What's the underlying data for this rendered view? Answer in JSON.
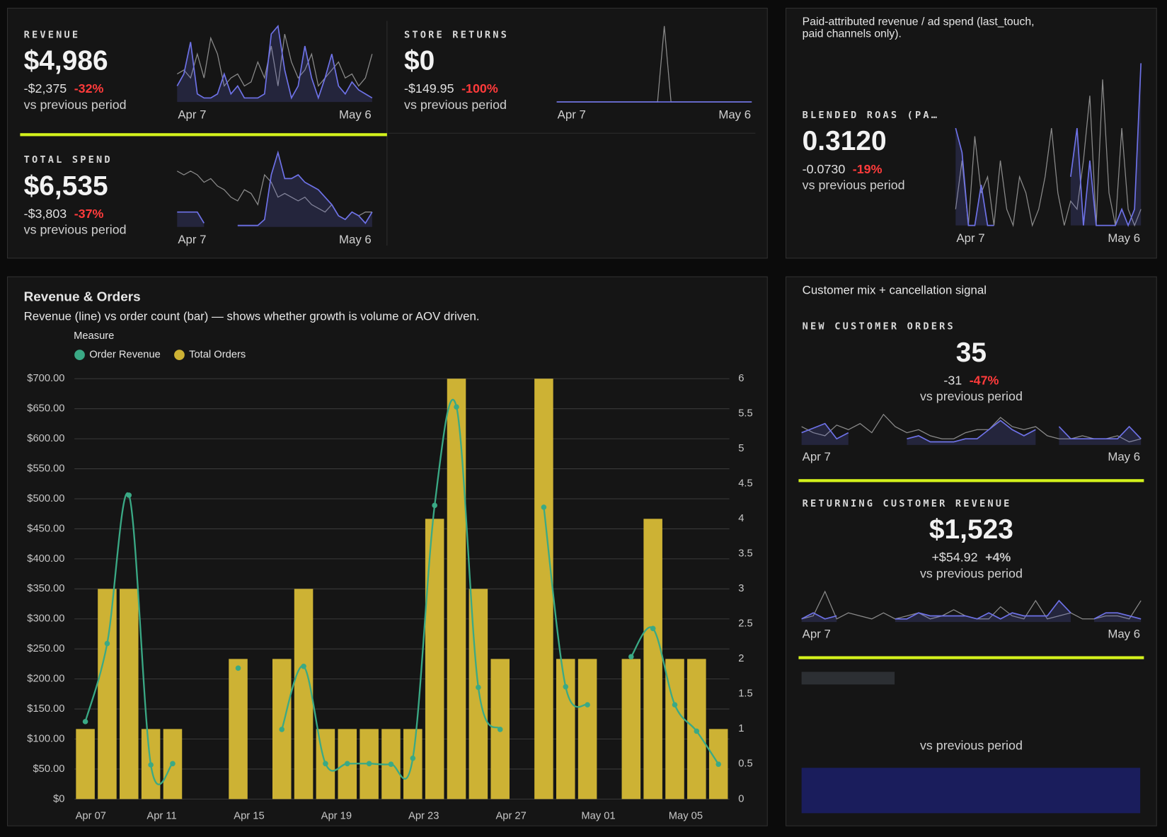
{
  "customer_mix_title": "Customer mix + cancellation signal",
  "cards": [
    {
      "label": "REVENUE",
      "value": "$4,986",
      "delta": "-$2,375",
      "pct": "-32%",
      "note": "vs previous period",
      "start": "Apr 7",
      "end": "May 6",
      "current": [
        0.2,
        0.35,
        0.75,
        0.1,
        0.05,
        0.05,
        0.1,
        0.35,
        0.1,
        0.2,
        0.05,
        0.05,
        0.05,
        0.1,
        0.85,
        0.95,
        0.4,
        0.05,
        0.2,
        0.7,
        0.3,
        0.05,
        0.3,
        0.6,
        0.2,
        0.1,
        0.25,
        0.15,
        0.1,
        0.05
      ],
      "previous": [
        0.35,
        0.4,
        0.3,
        0.6,
        0.3,
        0.8,
        0.6,
        0.2,
        0.3,
        0.35,
        0.2,
        0.25,
        0.5,
        0.3,
        0.7,
        0.2,
        0.85,
        0.5,
        0.3,
        0.4,
        0.6,
        0.2,
        0.3,
        0.4,
        0.5,
        0.3,
        0.35,
        0.2,
        0.3,
        0.6
      ]
    },
    {
      "label": "STORE RETURNS",
      "value": "$0",
      "delta": "-$149.95",
      "pct": "-100%",
      "note": "vs previous period",
      "start": "Apr 7",
      "end": "May 6",
      "current": [
        0,
        0,
        0,
        0,
        0,
        0,
        0,
        0,
        0,
        0,
        0,
        0,
        0,
        0,
        0,
        0,
        0,
        0,
        0,
        0,
        0,
        0,
        0,
        0,
        0,
        0,
        0,
        0,
        0,
        0
      ],
      "previous": [
        0,
        0,
        0,
        0,
        0,
        0,
        0,
        0,
        0,
        0,
        0,
        0,
        0,
        0,
        0,
        0,
        1,
        0,
        0,
        0,
        0,
        0,
        0,
        0,
        0,
        0,
        0,
        0,
        0,
        0
      ]
    },
    {
      "label": "TOTAL SPEND",
      "value": "$6,535",
      "delta": "-$3,803",
      "pct": "-37%",
      "note": "vs previous period",
      "start": "Apr 7",
      "end": "May 6",
      "current": [
        0.2,
        0.2,
        0.2,
        0.2,
        0.05,
        null,
        null,
        null,
        null,
        0.02,
        0.02,
        0.02,
        0.02,
        0.1,
        0.7,
        1,
        0.65,
        0.65,
        0.7,
        0.6,
        0.55,
        0.5,
        0.4,
        0.3,
        0.15,
        0.1,
        0.2,
        0.15,
        0.05,
        0.2
      ],
      "previous": [
        0.75,
        0.7,
        0.75,
        0.7,
        0.6,
        0.65,
        0.55,
        0.5,
        0.4,
        0.35,
        0.5,
        0.45,
        0.3,
        0.7,
        0.6,
        0.4,
        0.45,
        0.4,
        0.35,
        0.4,
        0.3,
        0.25,
        0.2,
        0.3,
        0.15,
        0.1,
        0.2,
        0.15,
        0.2,
        0.2
      ]
    },
    {
      "description": "Paid-attributed revenue / ad spend (last_touch, paid channels only).",
      "label": "BLENDED ROAS (PA…",
      "value": "0.3120",
      "delta": "-0.0730",
      "pct": "-19%",
      "note": "vs previous period",
      "start": "Apr 7",
      "end": "May 6",
      "current": [
        0.6,
        0.45,
        0,
        0,
        0.25,
        0,
        0,
        null,
        null,
        null,
        null,
        null,
        null,
        null,
        null,
        null,
        null,
        null,
        0.3,
        0.6,
        0,
        0.4,
        0,
        0,
        0,
        0,
        0.1,
        0,
        0.1,
        1
      ],
      "previous": [
        0.1,
        0.4,
        0,
        0.55,
        0.2,
        0.3,
        0,
        0.4,
        0.1,
        0,
        0.3,
        0.2,
        0,
        0.1,
        0.3,
        0.6,
        0.2,
        0,
        0.15,
        0.1,
        0.4,
        0.8,
        0,
        0.9,
        0.2,
        0,
        0.6,
        0.1,
        0,
        0.1
      ]
    },
    {
      "label": "NEW CUSTOMER ORDERS",
      "value": "35",
      "delta": "-31",
      "pct": "-47%",
      "note": "vs previous period",
      "start": "Apr 7",
      "end": "May 6",
      "current": [
        0.4,
        0.55,
        0.7,
        0.2,
        0.4,
        null,
        null,
        null,
        null,
        0.2,
        0.3,
        0.1,
        0.1,
        0.1,
        0.2,
        0.2,
        0.5,
        0.8,
        0.5,
        0.3,
        0.5,
        null,
        0.6,
        0.2,
        0.2,
        0.2,
        0.2,
        0.2,
        0.6,
        0.2
      ],
      "previous": [
        0.6,
        0.4,
        0.3,
        0.65,
        0.5,
        0.7,
        0.4,
        1,
        0.6,
        0.4,
        0.5,
        0.3,
        0.2,
        0.2,
        0.4,
        0.5,
        0.5,
        0.9,
        0.6,
        0.5,
        0.6,
        0.3,
        0.2,
        0.2,
        0.3,
        0.2,
        0.2,
        0.3,
        0.1,
        0.2
      ]
    },
    {
      "label": "RETURNING CUSTOMER REVENUE",
      "value": "$1,523",
      "delta": "+$54.92",
      "pct": "+4%",
      "note": "vs previous period",
      "start": "Apr 7",
      "end": "May 6",
      "current": [
        0.1,
        0.3,
        0.1,
        0.2,
        null,
        null,
        null,
        null,
        0.1,
        0.1,
        0.3,
        0.2,
        0.2,
        0.2,
        0.2,
        0.1,
        0.3,
        0.1,
        0.3,
        0.2,
        0.2,
        0.2,
        0.7,
        0.3,
        null,
        0.1,
        0.3,
        0.3,
        0.2,
        0.1
      ],
      "previous": [
        0.1,
        0.2,
        1,
        0.1,
        0.3,
        0.2,
        0.1,
        0.3,
        0.1,
        0.2,
        0.3,
        0.1,
        0.2,
        0.4,
        0.2,
        0.1,
        0.1,
        0.5,
        0.2,
        0.1,
        0.7,
        0.1,
        0.2,
        0.3,
        0.1,
        0.1,
        0.2,
        0.2,
        0.1,
        0.7
      ]
    },
    {
      "note": "vs previous period"
    }
  ],
  "chart_data": {
    "type": "bar",
    "title": "Revenue & Orders",
    "subtitle": "Revenue (line) vs order count (bar) — shows whether growth is volume or AOV driven.",
    "legend_title": "Measure",
    "categories": [
      "Apr 07",
      null,
      null,
      null,
      "Apr 11",
      null,
      null,
      null,
      "Apr 15",
      null,
      null,
      null,
      "Apr 19",
      null,
      null,
      null,
      "Apr 23",
      null,
      null,
      null,
      "Apr 27",
      null,
      null,
      null,
      "May 01",
      null,
      null,
      null,
      "May 05",
      null
    ],
    "series": [
      {
        "name": "Order Revenue",
        "type": "line",
        "color": "#3aa985",
        "axis": "y",
        "values": [
          129,
          259,
          506,
          57,
          59,
          null,
          null,
          218,
          null,
          116,
          221,
          59,
          59,
          59,
          58,
          68,
          489,
          653,
          186,
          116,
          null,
          486,
          187,
          157,
          null,
          237,
          284,
          157,
          113,
          58
        ]
      },
      {
        "name": "Total Orders",
        "type": "bar",
        "color": "#cdb234",
        "axis": "y2",
        "values": [
          1,
          3,
          3,
          1,
          1,
          null,
          null,
          2,
          null,
          2,
          3,
          1,
          1,
          1,
          1,
          1,
          4,
          6,
          3,
          2,
          null,
          6,
          2,
          2,
          null,
          2,
          4,
          2,
          2,
          1
        ]
      }
    ],
    "ylim": [
      0,
      700
    ],
    "yticks": [
      {
        "value": 0,
        "label": "$0"
      },
      {
        "value": 50,
        "label": "$50.00"
      },
      {
        "value": 100,
        "label": "$100.00"
      },
      {
        "value": 150,
        "label": "$150.00"
      },
      {
        "value": 200,
        "label": "$200.00"
      },
      {
        "value": 250,
        "label": "$250.00"
      },
      {
        "value": 300,
        "label": "$300.00"
      },
      {
        "value": 350,
        "label": "$350.00"
      },
      {
        "value": 400,
        "label": "$400.00"
      },
      {
        "value": 450,
        "label": "$450.00"
      },
      {
        "value": 500,
        "label": "$500.00"
      },
      {
        "value": 550,
        "label": "$550.00"
      },
      {
        "value": 600,
        "label": "$600.00"
      },
      {
        "value": 650,
        "label": "$650.00"
      },
      {
        "value": 700,
        "label": "$700.00"
      }
    ],
    "y2lim": [
      0,
      6
    ],
    "y2ticks": [
      0,
      0.5,
      1,
      1.5,
      2,
      2.5,
      3,
      3.5,
      4,
      4.5,
      5,
      5.5,
      6
    ],
    "grid": true
  }
}
